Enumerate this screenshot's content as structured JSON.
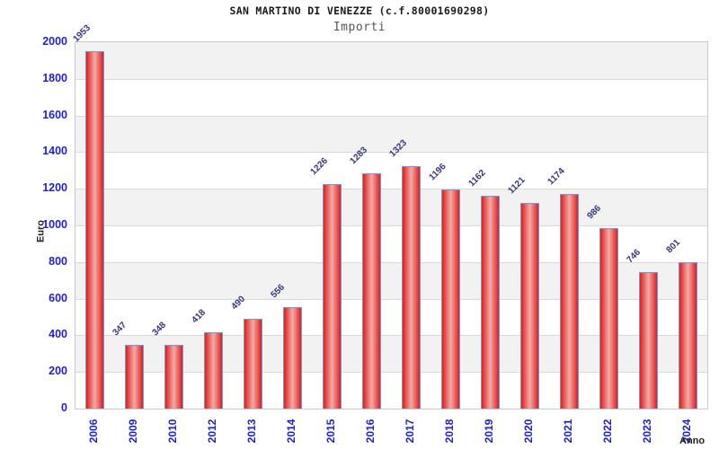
{
  "header": {
    "title": "SAN MARTINO DI VENEZZE (c.f.80001690298)",
    "subtitle": "Importi"
  },
  "chart_data": {
    "type": "bar",
    "title": "SAN MARTINO DI VENEZZE (c.f.80001690298)",
    "subtitle": "Importi",
    "xlabel": "Anno",
    "ylabel": "Euro",
    "categories": [
      "2006",
      "2009",
      "2010",
      "2012",
      "2013",
      "2014",
      "2015",
      "2016",
      "2017",
      "2018",
      "2019",
      "2020",
      "2021",
      "2022",
      "2023",
      "2024"
    ],
    "values": [
      1953,
      347,
      348,
      418,
      490,
      556,
      1226,
      1283,
      1323,
      1196,
      1162,
      1121,
      1174,
      986,
      746,
      801
    ],
    "ylim": [
      0,
      2000
    ],
    "ytick_step": 200,
    "grid": true,
    "legend": false,
    "banded_background": true,
    "colors": {
      "bar_edge": "#e21c1c",
      "bar_center": "#f2aca6",
      "bar_border": "#64a0e0",
      "tick_label": "#2121cc",
      "value_label": "#333380",
      "band": "#f2f2f2",
      "grid": "#d9d9d9",
      "plot_border": "#c9c9c9",
      "title": "#1a1a1a",
      "subtitle": "#555555",
      "axis_title": "#222222"
    }
  }
}
